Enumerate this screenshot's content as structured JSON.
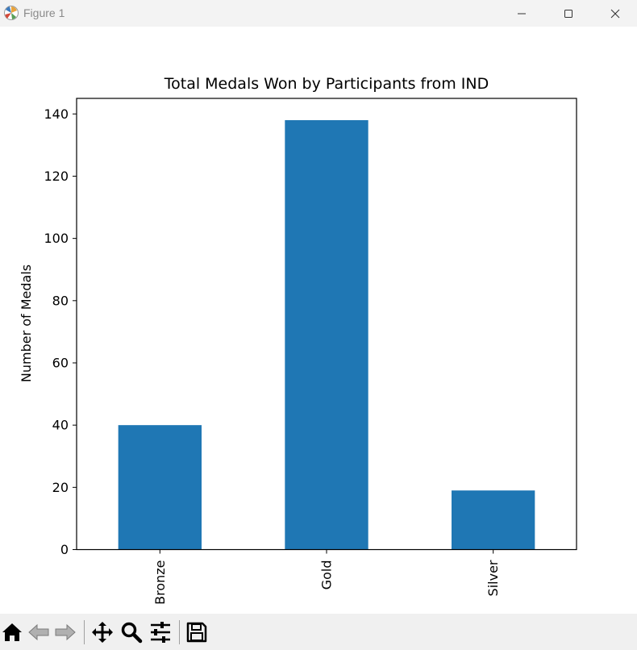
{
  "window": {
    "title": "Figure 1",
    "icons": [
      "matplotlib-icon",
      "minimize-icon",
      "maximize-icon",
      "close-icon"
    ]
  },
  "toolbar": {
    "buttons": [
      "home-icon",
      "back-icon",
      "forward-icon",
      "pan-icon",
      "zoom-icon",
      "configure-subplots-icon",
      "save-icon"
    ]
  },
  "chart_data": {
    "type": "bar",
    "title": "Total Medals Won by Participants from IND",
    "xlabel": "",
    "ylabel": "Number of Medals",
    "categories": [
      "Bronze",
      "Gold",
      "Silver"
    ],
    "values": [
      40,
      138,
      19
    ],
    "ylim": [
      0,
      145
    ],
    "yticks": [
      0,
      20,
      40,
      60,
      80,
      100,
      120,
      140
    ],
    "bar_color": "#1f77b4",
    "grid": false,
    "legend": false
  }
}
